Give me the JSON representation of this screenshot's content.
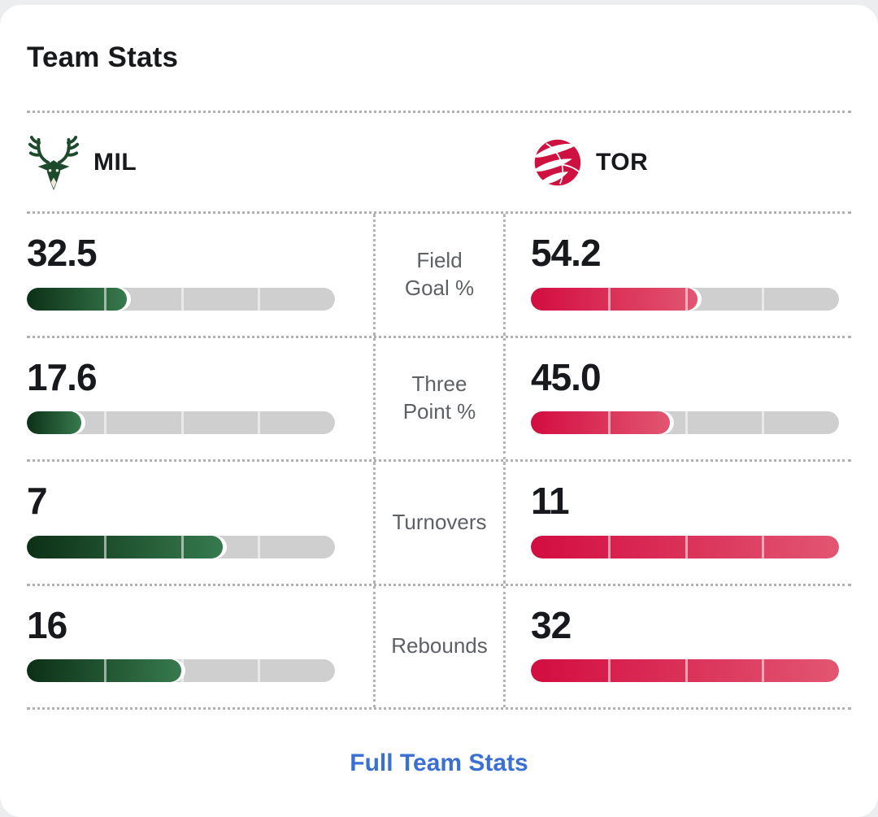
{
  "card": {
    "title": "Team Stats",
    "footer_link": "Full Team Stats",
    "link_color": "#3a6fd3"
  },
  "teams": {
    "home": {
      "abbr": "MIL",
      "logo": "milwaukee-bucks",
      "bar_from": "#0c3016",
      "bar_to": "#377a4e",
      "logo_green": "#1e4a2c",
      "logo_cream": "#ece7d8"
    },
    "away": {
      "abbr": "TOR",
      "logo": "toronto-raptors",
      "bar_from": "#d30d41",
      "bar_to": "#e25672",
      "logo_red": "#ce1141"
    }
  },
  "stats": [
    {
      "label": "Field\nGoal %",
      "home": {
        "value": "32.5",
        "fill_pct": 32.5
      },
      "away": {
        "value": "54.2",
        "fill_pct": 54.2
      }
    },
    {
      "label": "Three\nPoint %",
      "home": {
        "value": "17.6",
        "fill_pct": 17.6
      },
      "away": {
        "value": "45.0",
        "fill_pct": 45
      }
    },
    {
      "label": "Turnovers",
      "home": {
        "value": "7",
        "fill_pct": 63.6
      },
      "away": {
        "value": "11",
        "fill_pct": 100
      }
    },
    {
      "label": "Rebounds",
      "home": {
        "value": "16",
        "fill_pct": 50
      },
      "away": {
        "value": "32",
        "fill_pct": 100
      }
    }
  ]
}
